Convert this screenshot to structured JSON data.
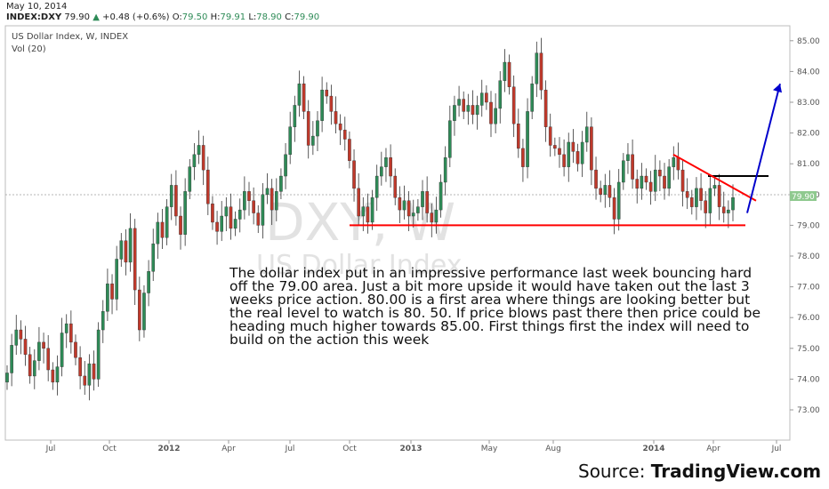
{
  "header": {
    "date": "May 10, 2014",
    "symbol": "INDEX:DXY",
    "last": "79.90",
    "change": "+0.48 (+0.6%)",
    "open_label": "O:",
    "open": "79.50",
    "high_label": "H:",
    "high": "79.91",
    "low_label": "L:",
    "low": "78.90",
    "close_label": "C:",
    "close": "79.90"
  },
  "chart_title": "US Dollar Index, W, INDEX",
  "volume_label": "Vol (20)",
  "watermark": {
    "line1": "DXY, W",
    "line2": "US Dollar Index"
  },
  "price_tag": "79.90",
  "commentary": "The dollar index put in an impressive performance last week bouncing hard off the 79.00 area. Just a bit more upside it would have taken out the last 3 weeks price action. 80.00 is a first area where things are looking better but the real level to watch is 80. 50. If price blows past there then price could be heading much higher towards 85.00. First things first the index will need to build on the action this week",
  "source": {
    "prefix": "Source: ",
    "brand": "TradingView.com"
  },
  "colors": {
    "up": "#2e8b57",
    "down": "#c0392b",
    "support": "#ff0000",
    "resistance": "#000000",
    "arrow": "#0000cc",
    "tag": "#8fc98f"
  },
  "chart_data": {
    "type": "candlestick",
    "ylim": [
      72.2,
      85.3
    ],
    "y_ticks": [
      "73.00",
      "74.00",
      "75.00",
      "76.00",
      "77.00",
      "78.00",
      "79.00",
      "80.00",
      "81.00",
      "82.00",
      "83.00",
      "84.00",
      "85.00"
    ],
    "x_ticks": [
      "Jul",
      "Oct",
      "2012",
      "Apr",
      "Jul",
      "Oct",
      "2013",
      "May",
      "Aug",
      "2014",
      "Apr",
      "Jul"
    ],
    "close_series": [
      74.2,
      75.1,
      75.6,
      75.3,
      74.8,
      74.1,
      74.6,
      75.2,
      75.0,
      74.3,
      73.9,
      74.4,
      75.5,
      75.8,
      75.2,
      74.7,
      74.1,
      73.8,
      74.5,
      74.0,
      75.6,
      76.2,
      77.1,
      76.6,
      77.9,
      78.5,
      77.8,
      78.9,
      76.9,
      75.6,
      76.8,
      77.5,
      78.4,
      79.1,
      78.6,
      79.6,
      80.3,
      79.3,
      78.7,
      80.1,
      80.9,
      81.3,
      81.6,
      80.8,
      79.7,
      79.1,
      78.8,
      79.3,
      79.6,
      78.9,
      79.2,
      79.5,
      80.1,
      79.8,
      79.4,
      79.0,
      80.0,
      80.2,
      79.5,
      80.1,
      80.6,
      81.3,
      82.2,
      82.9,
      83.6,
      82.7,
      81.6,
      81.9,
      82.4,
      83.4,
      83.2,
      82.7,
      82.3,
      82.1,
      81.8,
      81.1,
      80.2,
      79.3,
      79.6,
      79.1,
      79.9,
      80.6,
      80.9,
      81.2,
      80.6,
      79.9,
      79.5,
      79.8,
      79.3,
      79.4,
      79.6,
      80.1,
      79.4,
      79.1,
      79.5,
      80.4,
      81.2,
      82.4,
      82.9,
      83.1,
      82.7,
      82.9,
      82.6,
      82.9,
      83.3,
      83.0,
      82.3,
      82.8,
      83.7,
      84.3,
      83.5,
      82.3,
      81.5,
      80.9,
      82.7,
      83.6,
      84.6,
      83.4,
      82.2,
      81.6,
      81.5,
      81.3,
      80.9,
      81.7,
      81.4,
      81.0,
      81.7,
      82.2,
      80.8,
      80.2,
      80.0,
      80.3,
      79.9,
      79.2,
      80.4,
      81.1,
      81.3,
      80.5,
      80.2,
      80.6,
      80.4,
      80.1,
      80.8,
      80.6,
      80.2,
      80.9,
      81.2,
      80.8,
      80.1,
      79.9,
      79.6,
      80.2,
      79.8,
      79.4,
      80.2,
      80.3,
      79.6,
      79.4,
      79.5,
      79.9
    ],
    "support_line": {
      "from": [
        "Oct 2012",
        79.0
      ],
      "to": [
        "May 2014",
        79.0
      ]
    },
    "resistance_line": {
      "from": [
        "Mar 2014",
        80.6
      ],
      "to": [
        "Jun 2014",
        80.6
      ]
    },
    "trendline": {
      "from": [
        "Jan 2014",
        81.3
      ],
      "to": [
        "Jun 2014",
        79.8
      ]
    },
    "projection_arrow": {
      "from": [
        "May 2014",
        79.4
      ],
      "to": [
        "Jun 2014",
        83.6
      ]
    }
  }
}
